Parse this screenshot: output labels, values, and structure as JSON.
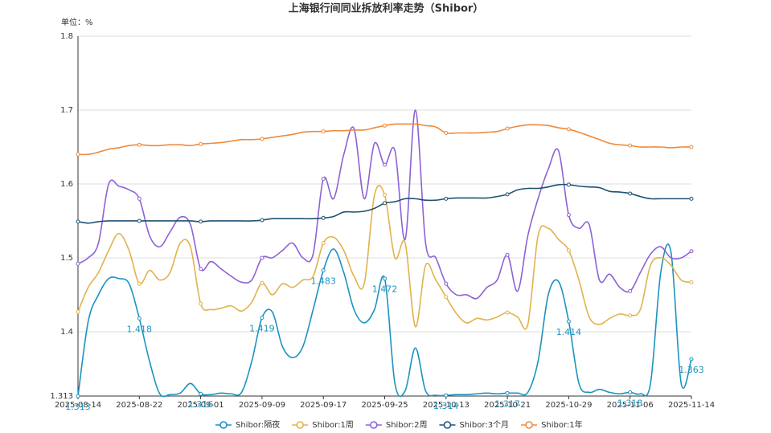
{
  "chart_data": {
    "type": "line",
    "title": "上海银行间同业拆放利率走势（Shibor）",
    "unit_label": "单位：%",
    "categories": [
      "2025-08-14",
      null,
      null,
      null,
      null,
      null,
      "2025-08-22",
      null,
      null,
      null,
      null,
      null,
      "2025-09-01",
      null,
      null,
      null,
      null,
      null,
      "2025-09-09",
      null,
      null,
      null,
      null,
      null,
      "2025-09-17",
      null,
      null,
      null,
      null,
      null,
      "2025-09-25",
      null,
      null,
      null,
      null,
      null,
      "2025-10-13",
      null,
      null,
      null,
      null,
      null,
      "2025-10-21",
      null,
      null,
      null,
      null,
      null,
      "2025-10-29",
      null,
      null,
      null,
      null,
      null,
      "2025-11-06",
      null,
      null,
      null,
      null,
      null,
      "2025-11-14"
    ],
    "ylim": [
      1.313,
      1.8
    ],
    "yticks": [
      1.313,
      1.4,
      1.5,
      1.6,
      1.7,
      1.8
    ],
    "grid": true,
    "smooth": true,
    "legend": "bottom",
    "series": [
      {
        "name": "Shibor:隔夜",
        "color": "#1b93c0",
        "labels": true,
        "values": [
          1.313,
          1.414,
          1.45,
          1.472,
          1.472,
          1.465,
          1.418,
          1.36,
          1.316,
          1.315,
          1.317,
          1.33,
          1.316,
          1.315,
          1.317,
          1.316,
          1.318,
          1.36,
          1.419,
          1.427,
          1.38,
          1.365,
          1.38,
          1.43,
          1.483,
          1.512,
          1.48,
          1.43,
          1.412,
          1.43,
          1.472,
          1.33,
          1.32,
          1.378,
          1.32,
          1.314,
          1.314,
          1.315,
          1.315,
          1.316,
          1.317,
          1.316,
          1.317,
          1.317,
          1.318,
          1.36,
          1.45,
          1.468,
          1.414,
          1.33,
          1.318,
          1.322,
          1.318,
          1.316,
          1.318,
          1.316,
          1.33,
          1.48,
          1.508,
          1.33,
          1.363
        ]
      },
      {
        "name": "Shibor:1周",
        "color": "#e2b24c",
        "labels": false,
        "values": [
          1.427,
          1.46,
          1.48,
          1.51,
          1.533,
          1.51,
          1.465,
          1.483,
          1.47,
          1.48,
          1.52,
          1.515,
          1.438,
          1.43,
          1.432,
          1.435,
          1.428,
          1.44,
          1.466,
          1.45,
          1.465,
          1.46,
          1.47,
          1.475,
          1.52,
          1.528,
          1.51,
          1.475,
          1.465,
          1.585,
          1.585,
          1.5,
          1.52,
          1.407,
          1.49,
          1.47,
          1.447,
          1.425,
          1.412,
          1.418,
          1.416,
          1.42,
          1.426,
          1.42,
          1.41,
          1.53,
          1.54,
          1.525,
          1.51,
          1.47,
          1.42,
          1.41,
          1.418,
          1.424,
          1.422,
          1.43,
          1.49,
          1.5,
          1.49,
          1.47,
          1.467
        ]
      },
      {
        "name": "Shibor:2周",
        "color": "#8d62d4",
        "labels": false,
        "values": [
          1.492,
          1.5,
          1.52,
          1.6,
          1.597,
          1.592,
          1.58,
          1.53,
          1.515,
          1.535,
          1.555,
          1.545,
          1.485,
          1.495,
          1.485,
          1.475,
          1.467,
          1.47,
          1.5,
          1.5,
          1.51,
          1.52,
          1.5,
          1.505,
          1.607,
          1.58,
          1.64,
          1.675,
          1.58,
          1.655,
          1.626,
          1.645,
          1.525,
          1.7,
          1.52,
          1.5,
          1.465,
          1.45,
          1.45,
          1.445,
          1.46,
          1.47,
          1.504,
          1.455,
          1.53,
          1.58,
          1.62,
          1.645,
          1.558,
          1.54,
          1.545,
          1.47,
          1.478,
          1.46,
          1.455,
          1.48,
          1.505,
          1.515,
          1.5,
          1.5,
          1.509
        ]
      },
      {
        "name": "Shibor:3个月",
        "color": "#1f5273",
        "labels": false,
        "values": [
          1.549,
          1.547,
          1.549,
          1.55,
          1.55,
          1.55,
          1.55,
          1.55,
          1.55,
          1.55,
          1.55,
          1.55,
          1.549,
          1.55,
          1.55,
          1.55,
          1.55,
          1.55,
          1.551,
          1.553,
          1.553,
          1.553,
          1.553,
          1.553,
          1.554,
          1.556,
          1.562,
          1.562,
          1.563,
          1.567,
          1.574,
          1.576,
          1.58,
          1.58,
          1.578,
          1.578,
          1.58,
          1.581,
          1.581,
          1.581,
          1.581,
          1.583,
          1.586,
          1.592,
          1.594,
          1.594,
          1.596,
          1.599,
          1.599,
          1.597,
          1.596,
          1.595,
          1.59,
          1.589,
          1.587,
          1.583,
          1.58,
          1.58,
          1.58,
          1.58,
          1.58
        ]
      },
      {
        "name": "Shibor:1年",
        "color": "#ee8a3c",
        "labels": false,
        "values": [
          1.64,
          1.64,
          1.643,
          1.647,
          1.649,
          1.652,
          1.653,
          1.652,
          1.652,
          1.653,
          1.653,
          1.652,
          1.654,
          1.655,
          1.656,
          1.658,
          1.66,
          1.66,
          1.661,
          1.663,
          1.665,
          1.667,
          1.67,
          1.671,
          1.671,
          1.672,
          1.672,
          1.673,
          1.673,
          1.676,
          1.679,
          1.681,
          1.681,
          1.681,
          1.679,
          1.677,
          1.669,
          1.669,
          1.669,
          1.669,
          1.67,
          1.671,
          1.675,
          1.678,
          1.68,
          1.68,
          1.679,
          1.676,
          1.674,
          1.67,
          1.665,
          1.66,
          1.655,
          1.653,
          1.652,
          1.65,
          1.65,
          1.65,
          1.649,
          1.65,
          1.65
        ]
      }
    ]
  }
}
